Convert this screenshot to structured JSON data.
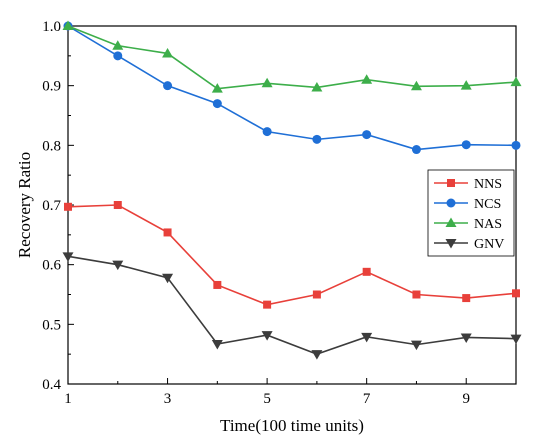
{
  "chart_data": {
    "type": "line",
    "xlabel": "Time(100 time units)",
    "ylabel": "Recovery Ratio",
    "xlim": [
      1,
      10
    ],
    "ylim": [
      0.4,
      1.0
    ],
    "xticks": [
      1,
      3,
      5,
      7,
      9
    ],
    "xtick_labels": [
      "1",
      "3",
      "5",
      "7",
      "9"
    ],
    "yticks": [
      0.4,
      0.5,
      0.6,
      0.7,
      0.8,
      0.9,
      1.0
    ],
    "ytick_labels": [
      "0.4",
      "0.5",
      "0.6",
      "0.7",
      "0.8",
      "0.9",
      "1.0"
    ],
    "grid": false,
    "legend_position": "right",
    "x": [
      1,
      2,
      3,
      4,
      5,
      6,
      7,
      8,
      9,
      10
    ],
    "series": [
      {
        "name": "NNS",
        "color": "#e8403a",
        "marker": "square",
        "values": [
          0.697,
          0.7,
          0.654,
          0.566,
          0.533,
          0.55,
          0.588,
          0.55,
          0.544,
          0.552
        ]
      },
      {
        "name": "NCS",
        "color": "#1f6fd6",
        "marker": "circle",
        "values": [
          1.0,
          0.95,
          0.9,
          0.87,
          0.823,
          0.81,
          0.818,
          0.793,
          0.801,
          0.8
        ]
      },
      {
        "name": "NAS",
        "color": "#3dae4a",
        "marker": "triangle-up",
        "values": [
          1.0,
          0.967,
          0.954,
          0.895,
          0.904,
          0.897,
          0.91,
          0.899,
          0.9,
          0.906
        ]
      },
      {
        "name": "GNV",
        "color": "#3c3c3c",
        "marker": "triangle-down",
        "values": [
          0.614,
          0.6,
          0.578,
          0.467,
          0.482,
          0.45,
          0.479,
          0.466,
          0.478,
          0.476
        ]
      }
    ]
  }
}
